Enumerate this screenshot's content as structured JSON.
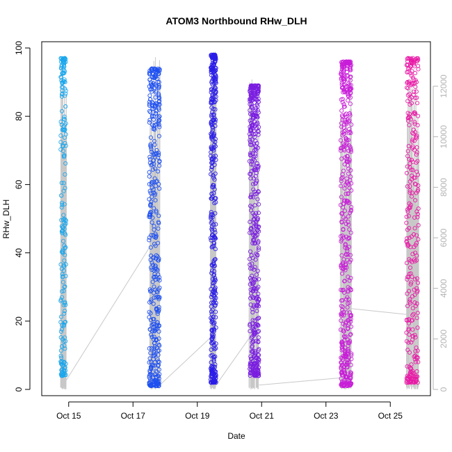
{
  "chart_data": {
    "type": "scatter",
    "title": "ATOM3 Northbound RHw_DLH",
    "xlabel": "Date",
    "ylabel": "RHw_DLH",
    "x_ticks": [
      "Oct 15",
      "Oct 17",
      "Oct 19",
      "Oct 21",
      "Oct 23",
      "Oct 25"
    ],
    "y_ticks": [
      "0",
      "20",
      "40",
      "60",
      "80",
      "100"
    ],
    "y2_ticks": [
      "0",
      "2000",
      "4000",
      "6000",
      "8000",
      "10000",
      "12000"
    ],
    "ylim": [
      0,
      100
    ],
    "y2lim": [
      0,
      12000
    ],
    "xlim": [
      "2019-10-14T00:00",
      "2019-10-26T00:00"
    ],
    "grid": false,
    "legend": "none",
    "line_color": "#c8c8c8",
    "secondary_axis_color": "#b3b3b3",
    "series": [
      {
        "x_range": [
          "2019-10-14T18:00",
          "2019-10-14T22:00"
        ],
        "y_range": [
          4,
          97
        ],
        "y2_range": [
          0,
          11800
        ],
        "color": "#1aa6ec",
        "point_count": 200
      },
      {
        "x_range": [
          "2019-10-17T12:00",
          "2019-10-17T20:00"
        ],
        "y_range": [
          1,
          94
        ],
        "y2_range": [
          0,
          12000
        ],
        "color": "#1f50f0",
        "point_count": 400
      },
      {
        "x_range": [
          "2019-10-19T10:00",
          "2019-10-19T14:00"
        ],
        "y_range": [
          2,
          98
        ],
        "y2_range": [
          0,
          12000
        ],
        "color": "#2b1ee8",
        "point_count": 380
      },
      {
        "x_range": [
          "2019-10-20T15:00",
          "2019-10-20T22:00"
        ],
        "y_range": [
          4,
          89
        ],
        "y2_range": [
          0,
          11300
        ],
        "color": "#7a1ee0",
        "point_count": 440
      },
      {
        "x_range": [
          "2019-10-23T11:00",
          "2019-10-23T19:00"
        ],
        "y_range": [
          1,
          96
        ],
        "y2_range": [
          0,
          11500
        ],
        "color": "#c81ed8",
        "point_count": 460
      },
      {
        "x_range": [
          "2019-10-25T12:00",
          "2019-10-25T21:00"
        ],
        "y_range": [
          2,
          97
        ],
        "y2_range": [
          0,
          11000
        ],
        "color": "#e81aa6",
        "point_count": 300
      }
    ],
    "connecting_line_y2": [
      300,
      4900,
      150,
      1800,
      2200,
      150,
      1800,
      2800,
      2600
    ]
  }
}
